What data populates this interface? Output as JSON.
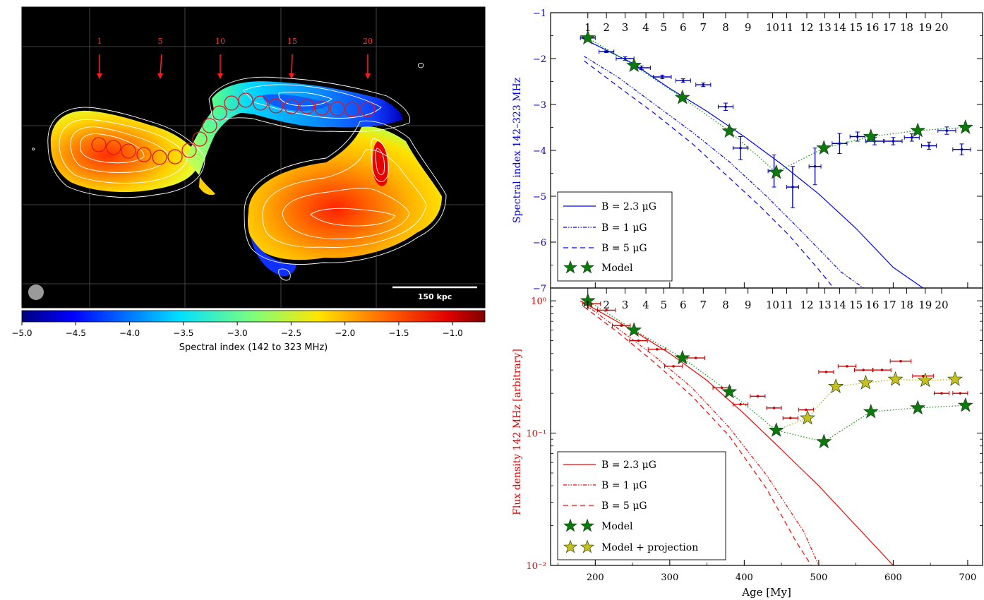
{
  "chart_data": [
    {
      "type": "heatmap",
      "region_numbers": [
        "1",
        "5",
        "10",
        "15",
        "20"
      ],
      "scale_bar_label": "150 kpc",
      "colorbar": {
        "label": "Spectral index (142 to 323 MHz)",
        "ticks": [
          "−5.0",
          "−4.5",
          "−4.0",
          "−3.5",
          "−3.0",
          "−2.5",
          "−2.0",
          "−1.5",
          "−1.0"
        ],
        "range": [
          -5.0,
          -0.7
        ]
      },
      "colors": {
        "background": "#000000",
        "arrows": "#ff1a1a",
        "circles": "#e0141e",
        "contours": "#ffffff"
      }
    },
    {
      "type": "line",
      "ylabel": "Spectral index 142–323 MHz",
      "ylabel_color": "#0000dd",
      "ylim": [
        -7,
        -1
      ],
      "yticks": [
        "−1",
        "−2",
        "−3",
        "−4",
        "−5",
        "−6",
        "−7"
      ],
      "ytick_values": [
        -1,
        -2,
        -3,
        -4,
        -5,
        -6,
        -7
      ],
      "xlim": [
        140,
        720
      ],
      "region_labels": [
        "1",
        "2",
        "3",
        "4",
        "5",
        "6",
        "7",
        "8",
        "9",
        "10",
        "11",
        "12",
        "13",
        "14",
        "15",
        "16",
        "17",
        "18",
        "19",
        "20"
      ],
      "region_ages": [
        190,
        215,
        240,
        268,
        292,
        318,
        345,
        375,
        405,
        438,
        457,
        484,
        508,
        528,
        550,
        572,
        595,
        618,
        643,
        665
      ],
      "legend": [
        {
          "label": "B = 2.3 μG",
          "style": "solid"
        },
        {
          "label": "B = 1 μG",
          "style": "dashdot"
        },
        {
          "label": "B = 5 μG",
          "style": "dashed"
        },
        {
          "label": "Model",
          "style": "star"
        }
      ],
      "series": [
        {
          "name": "Observed",
          "x": [
            190,
            215,
            240,
            262,
            290,
            318,
            345,
            375,
            395,
            440,
            465,
            495,
            528,
            552,
            575,
            600,
            625,
            648,
            672,
            692
          ],
          "y": [
            -1.55,
            -1.85,
            -2.0,
            -2.2,
            -2.4,
            -2.48,
            -2.57,
            -3.05,
            -3.95,
            -4.45,
            -4.8,
            -4.35,
            -3.85,
            -3.7,
            -3.8,
            -3.8,
            -3.72,
            -3.9,
            -3.57,
            -3.98
          ],
          "xerr": [
            10,
            10,
            12,
            12,
            12,
            10,
            10,
            10,
            10,
            8,
            8,
            8,
            10,
            10,
            12,
            12,
            10,
            10,
            12,
            12
          ],
          "yerr": [
            0.04,
            0.02,
            0.04,
            0.04,
            0.04,
            0.04,
            0.04,
            0.08,
            0.25,
            0.35,
            0.45,
            0.4,
            0.22,
            0.1,
            0.08,
            0.08,
            0.08,
            0.08,
            0.08,
            0.12
          ]
        },
        {
          "name": "Model",
          "x": [
            190,
            252,
            317,
            380,
            443,
            507,
            570,
            633,
            697
          ],
          "y": [
            -1.55,
            -2.15,
            -2.85,
            -3.58,
            -4.48,
            -3.95,
            -3.7,
            -3.57,
            -3.5
          ]
        }
      ],
      "curves": {
        "solid": {
          "x": [
            182,
            250,
            300,
            350,
            400,
            450,
            500,
            550,
            600,
            640
          ],
          "y": [
            -1.55,
            -2.1,
            -2.65,
            -3.15,
            -3.7,
            -4.3,
            -4.95,
            -5.7,
            -6.55,
            -7.0
          ]
        },
        "dashdot": {
          "x": [
            185,
            230,
            280,
            330,
            380,
            430,
            470,
            500,
            530,
            560
          ],
          "y": [
            -1.95,
            -2.4,
            -3.0,
            -3.6,
            -4.25,
            -5.0,
            -5.65,
            -6.15,
            -6.65,
            -7.0
          ]
        },
        "dashed": {
          "x": [
            185,
            230,
            280,
            330,
            380,
            420,
            460,
            500,
            520
          ],
          "y": [
            -2.05,
            -2.6,
            -3.2,
            -3.85,
            -4.6,
            -5.2,
            -5.85,
            -6.6,
            -7.0
          ]
        }
      },
      "colors": {
        "lines": "#0000ff",
        "data": "#0000bb",
        "model": "#0b7a0b",
        "model_line": "#139c13"
      }
    },
    {
      "type": "line",
      "ylabel": "Flux density 142 MHz [arbitrary]",
      "ylabel_color": "#dd0000",
      "xlabel": "Age [My]",
      "ylog": true,
      "ylim": [
        0.01,
        1.25
      ],
      "yticks": [
        "10⁰",
        "10⁻¹",
        "10⁻²"
      ],
      "ytick_values": [
        1,
        0.1,
        0.01
      ],
      "xlim": [
        140,
        720
      ],
      "xticks": [
        "200",
        "300",
        "400",
        "500",
        "600",
        "700"
      ],
      "xtick_values": [
        200,
        300,
        400,
        500,
        600,
        700
      ],
      "region_labels": [
        "1",
        "2",
        "3",
        "4",
        "5",
        "6",
        "7",
        "8",
        "9",
        "10",
        "11",
        "12",
        "13",
        "14",
        "15",
        "16",
        "17",
        "18",
        "19",
        "20"
      ],
      "region_ages": [
        190,
        215,
        240,
        268,
        292,
        318,
        345,
        375,
        405,
        438,
        457,
        484,
        508,
        528,
        550,
        572,
        595,
        618,
        643,
        665
      ],
      "legend": [
        {
          "label": "B = 2.3 μG",
          "style": "solid"
        },
        {
          "label": "B = 1 μG",
          "style": "dashdot"
        },
        {
          "label": "B = 5 μG",
          "style": "dashed"
        },
        {
          "label": "Model",
          "style": "star"
        },
        {
          "label": "Model + projection",
          "style": "star-yellow"
        }
      ],
      "series": [
        {
          "name": "Observed",
          "x": [
            195,
            215,
            235,
            258,
            283,
            305,
            335,
            370,
            395,
            418,
            440,
            462,
            483,
            510,
            538,
            560,
            585,
            610,
            640,
            665,
            690
          ],
          "y": [
            0.95,
            0.85,
            0.65,
            0.5,
            0.43,
            0.32,
            0.37,
            0.22,
            0.165,
            0.19,
            0.155,
            0.13,
            0.15,
            0.29,
            0.32,
            0.3,
            0.3,
            0.35,
            0.27,
            0.2,
            0.2
          ],
          "xerr": [
            12,
            12,
            12,
            12,
            12,
            12,
            12,
            12,
            10,
            10,
            10,
            10,
            10,
            10,
            12,
            12,
            12,
            14,
            14,
            10,
            10
          ]
        },
        {
          "name": "Model",
          "x": [
            190,
            252,
            317,
            380,
            443,
            507,
            570,
            633,
            697
          ],
          "y": [
            1.0,
            0.6,
            0.37,
            0.205,
            0.105,
            0.086,
            0.145,
            0.155,
            0.162
          ]
        },
        {
          "name": "Model + projection",
          "x": [
            443,
            485,
            523,
            563,
            603,
            643,
            683
          ],
          "y": [
            0.105,
            0.13,
            0.225,
            0.24,
            0.255,
            0.25,
            0.255
          ]
        }
      ],
      "curves": {
        "solid": {
          "x": [
            180,
            250,
            300,
            350,
            400,
            450,
            500,
            550,
            600
          ],
          "y": [
            1.0,
            0.6,
            0.4,
            0.25,
            0.14,
            0.075,
            0.04,
            0.02,
            0.01
          ]
        },
        "dashdot": {
          "x": [
            185,
            230,
            280,
            330,
            380,
            430,
            480,
            500
          ],
          "y": [
            0.95,
            0.62,
            0.38,
            0.22,
            0.11,
            0.048,
            0.018,
            0.01
          ]
        },
        "dashed": {
          "x": [
            185,
            230,
            280,
            330,
            380,
            430,
            470,
            490
          ],
          "y": [
            0.9,
            0.58,
            0.34,
            0.19,
            0.095,
            0.038,
            0.015,
            0.01
          ]
        }
      },
      "colors": {
        "lines": "#ff0000",
        "data": "#cc0000",
        "model": "#0b7a0b",
        "projection": "#c8c01a",
        "model_line": "#139c13",
        "projection_line": "#b8b020"
      }
    }
  ]
}
